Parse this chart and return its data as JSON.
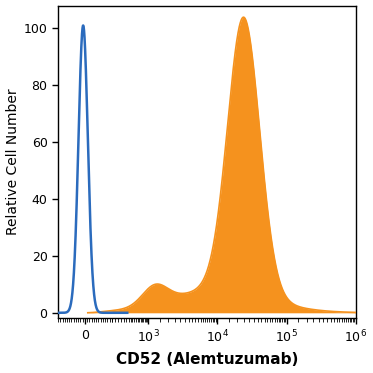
{
  "title": "",
  "xlabel": "CD52 (Alemtuzumab)",
  "ylabel": "Relative Cell Number",
  "ylim": [
    -2,
    108
  ],
  "yticks": [
    0,
    20,
    40,
    60,
    80,
    100
  ],
  "blue_color": "#2b6bbd",
  "orange_color": "#f5921e",
  "orange_fill_alpha": 1.0,
  "background_color": "#ffffff",
  "xlabel_fontsize": 11,
  "xlabel_fontweight": "bold",
  "ylabel_fontsize": 10,
  "tick_fontsize": 9,
  "linthresh": 300,
  "linscale": 0.35
}
